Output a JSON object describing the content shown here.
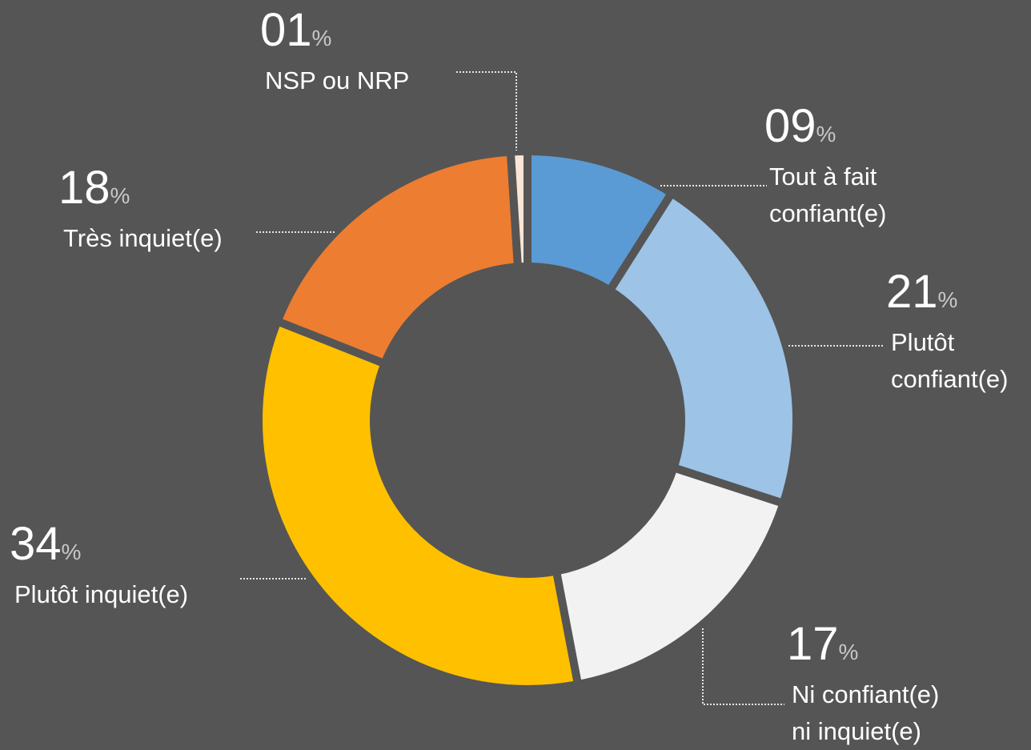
{
  "chart_data": {
    "type": "donut",
    "categories": [
      "Tout à fait\nconfiant(e)",
      "Plutôt\nconfiant(e)",
      "Ni confiant(e)\nni inquiet(e)",
      "Plutôt inquiet(e)",
      "Très inquiet(e)",
      "NSP ou NRP"
    ],
    "values": [
      9,
      21,
      17,
      34,
      18,
      1
    ],
    "value_labels": [
      "09",
      "21",
      "17",
      "34",
      "18",
      "01"
    ],
    "unit": "%",
    "colors": [
      "#5b9bd5",
      "#9dc3e6",
      "#f2f2f2",
      "#ffc000",
      "#ed7d31",
      "#fbe5d6"
    ]
  }
}
